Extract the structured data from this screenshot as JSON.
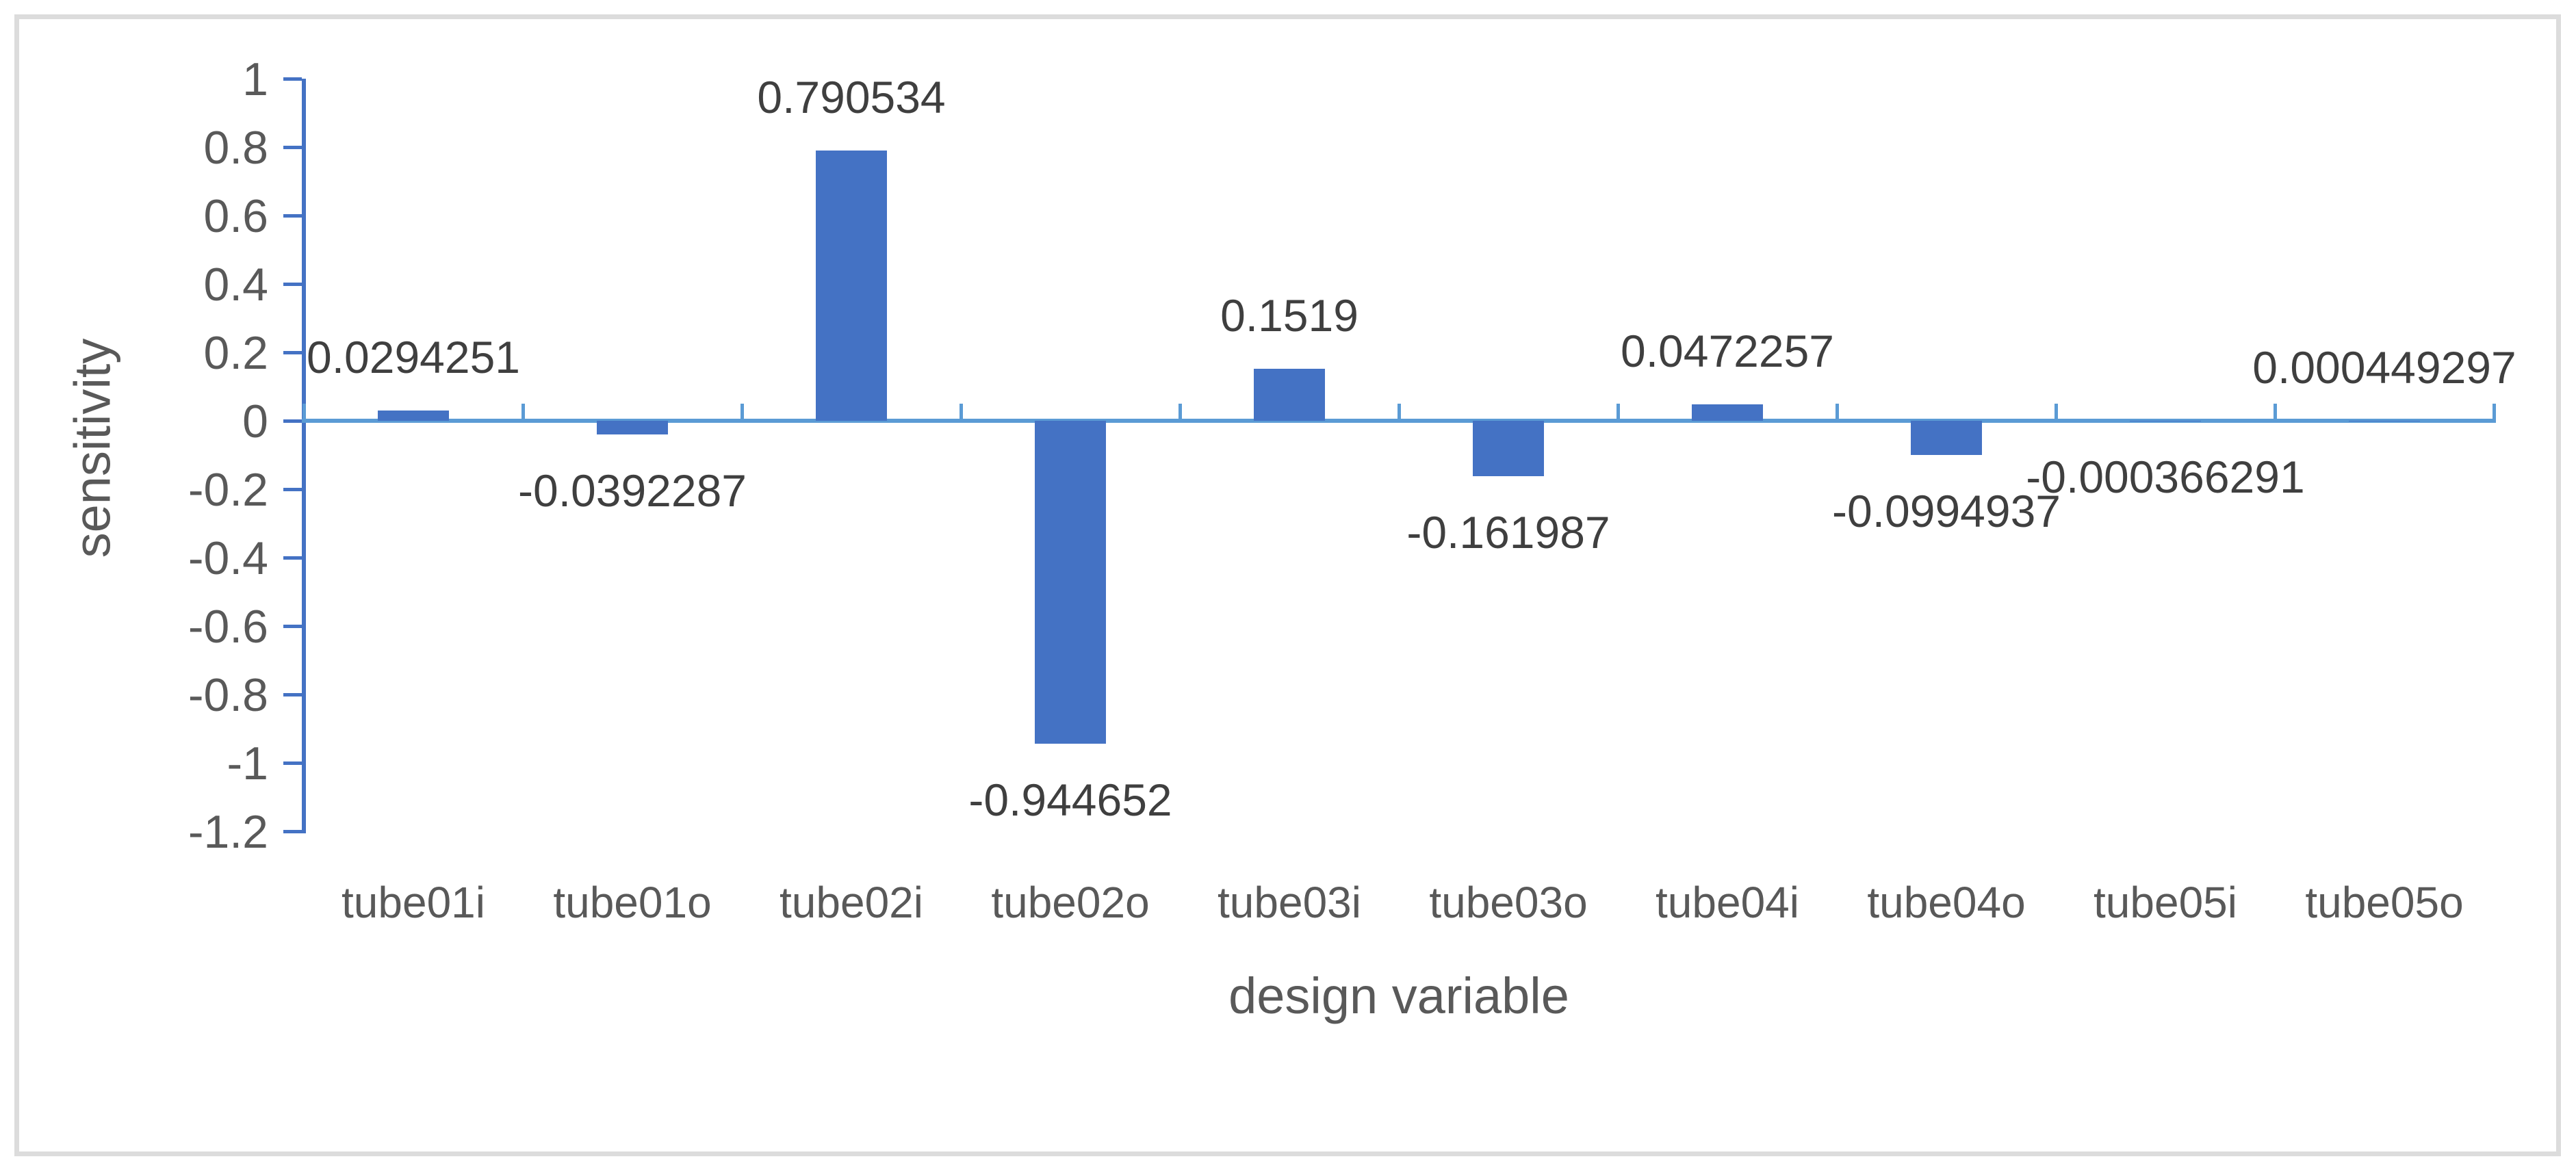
{
  "chart_data": {
    "type": "bar",
    "title": "",
    "categories": [
      "tube01i",
      "tube01o",
      "tube02i",
      "tube02o",
      "tube03i",
      "tube03o",
      "tube04i",
      "tube04o",
      "tube05i",
      "tube05o"
    ],
    "values": [
      0.0294251,
      -0.0392287,
      0.790534,
      -0.944652,
      0.1519,
      -0.161987,
      0.0472257,
      -0.0994937,
      -0.000366291,
      0.000449297
    ],
    "value_labels": [
      "0.0294251",
      "-0.0392287",
      "0.790534",
      "-0.944652",
      "0.1519",
      "-0.161987",
      "0.0472257",
      "-0.0994937",
      "-0.000366291",
      "0.000449297"
    ],
    "xlabel": "design variable",
    "ylabel": "sensitivity",
    "ylim": [
      -1.2,
      1
    ],
    "ytick_step": 0.2,
    "ytick_labels": [
      "1",
      "0.8",
      "0.6",
      "0.4",
      "0.2",
      "0",
      "-0.2",
      "-0.4",
      "-0.6",
      "-0.8",
      "-1",
      "-1.2"
    ],
    "grid": false,
    "legend": false,
    "data_labels": "outside-end",
    "bar_color": "#4472C4",
    "y_axis_color": "#4472C4",
    "x_axis_color": "#5B9BD5",
    "data_label_color": "#3F3F3F",
    "tick_label_color": "#595959"
  }
}
